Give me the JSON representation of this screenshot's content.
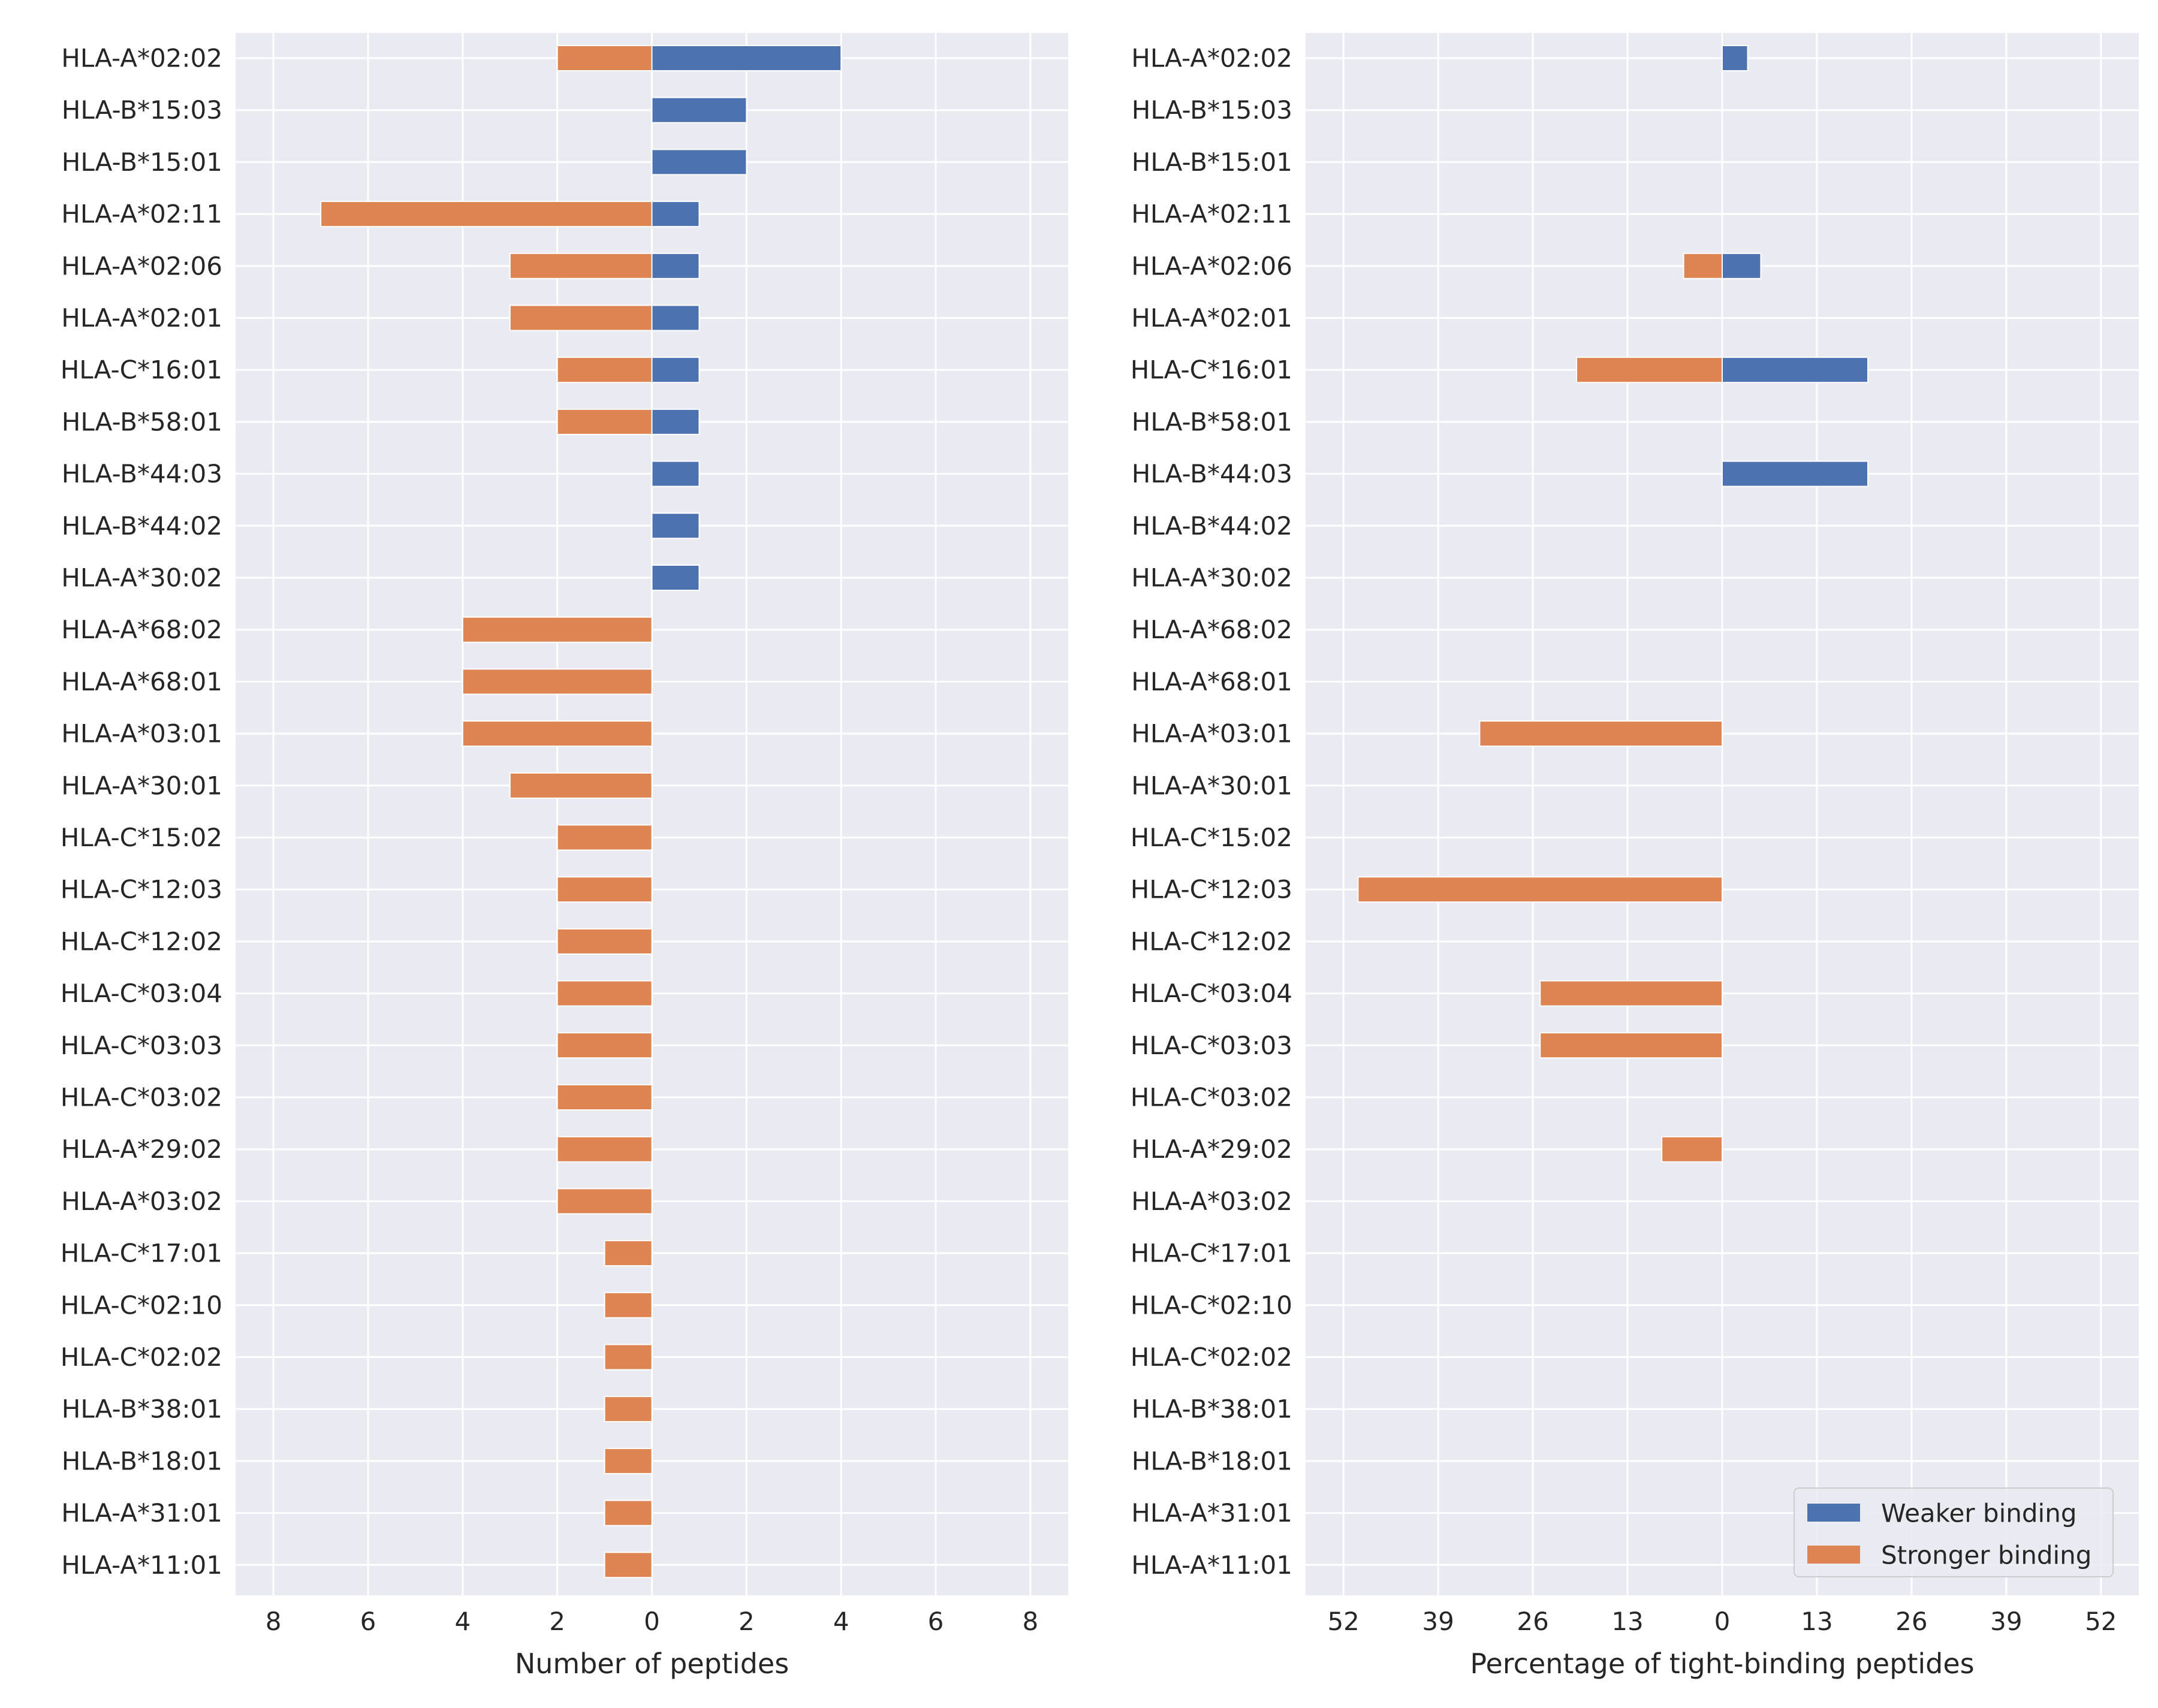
{
  "colors": {
    "weaker": "#4c72b0",
    "stronger": "#dd8452",
    "panel_bg": "#eaeaf2",
    "grid": "#ffffff",
    "text": "#262626"
  },
  "legend": {
    "position": "lower-right",
    "items": [
      {
        "label": "Weaker binding",
        "color": "#4c72b0"
      },
      {
        "label": "Stronger binding",
        "color": "#dd8452"
      }
    ]
  },
  "chart_data": [
    {
      "type": "bar",
      "orientation": "horizontal-diverging",
      "xlabel": "Number of peptides",
      "xlim": [
        -8.8,
        8.8
      ],
      "xticks": [
        -8,
        -6,
        -4,
        -2,
        0,
        2,
        4,
        6,
        8
      ],
      "xtick_labels": [
        "8",
        "6",
        "4",
        "2",
        "0",
        "2",
        "4",
        "6",
        "8"
      ],
      "grid": true,
      "categories": [
        "HLA-A*02:02",
        "HLA-B*15:03",
        "HLA-B*15:01",
        "HLA-A*02:11",
        "HLA-A*02:06",
        "HLA-A*02:01",
        "HLA-C*16:01",
        "HLA-B*58:01",
        "HLA-B*44:03",
        "HLA-B*44:02",
        "HLA-A*30:02",
        "HLA-A*68:02",
        "HLA-A*68:01",
        "HLA-A*03:01",
        "HLA-A*30:01",
        "HLA-C*15:02",
        "HLA-C*12:03",
        "HLA-C*12:02",
        "HLA-C*03:04",
        "HLA-C*03:03",
        "HLA-C*03:02",
        "HLA-A*29:02",
        "HLA-A*03:02",
        "HLA-C*17:01",
        "HLA-C*02:10",
        "HLA-C*02:02",
        "HLA-B*38:01",
        "HLA-B*18:01",
        "HLA-A*31:01",
        "HLA-A*11:01"
      ],
      "series": [
        {
          "name": "Weaker binding",
          "direction": "right",
          "values": [
            4,
            2,
            2,
            1,
            1,
            1,
            1,
            1,
            1,
            1,
            1,
            0,
            0,
            0,
            0,
            0,
            0,
            0,
            0,
            0,
            0,
            0,
            0,
            0,
            0,
            0,
            0,
            0,
            0,
            0
          ]
        },
        {
          "name": "Stronger binding",
          "direction": "left",
          "values": [
            2,
            0,
            0,
            7,
            3,
            3,
            2,
            2,
            0,
            0,
            0,
            4,
            4,
            4,
            3,
            2,
            2,
            2,
            2,
            2,
            2,
            2,
            2,
            1,
            1,
            1,
            1,
            1,
            1,
            1
          ]
        }
      ]
    },
    {
      "type": "bar",
      "orientation": "horizontal-diverging",
      "xlabel": "Percentage of tight-binding peptides",
      "xlim": [
        -57.2,
        57.2
      ],
      "xticks": [
        -52,
        -39,
        -26,
        -13,
        0,
        13,
        26,
        39,
        52
      ],
      "xtick_labels": [
        "52",
        "39",
        "26",
        "13",
        "0",
        "13",
        "26",
        "39",
        "52"
      ],
      "grid": true,
      "categories": [
        "HLA-A*02:02",
        "HLA-B*15:03",
        "HLA-B*15:01",
        "HLA-A*02:11",
        "HLA-A*02:06",
        "HLA-A*02:01",
        "HLA-C*16:01",
        "HLA-B*58:01",
        "HLA-B*44:03",
        "HLA-B*44:02",
        "HLA-A*30:02",
        "HLA-A*68:02",
        "HLA-A*68:01",
        "HLA-A*03:01",
        "HLA-A*30:01",
        "HLA-C*15:02",
        "HLA-C*12:03",
        "HLA-C*12:02",
        "HLA-C*03:04",
        "HLA-C*03:03",
        "HLA-C*03:02",
        "HLA-A*29:02",
        "HLA-A*03:02",
        "HLA-C*17:01",
        "HLA-C*02:10",
        "HLA-C*02:02",
        "HLA-B*38:01",
        "HLA-B*18:01",
        "HLA-A*31:01",
        "HLA-A*11:01"
      ],
      "series": [
        {
          "name": "Weaker binding",
          "direction": "right",
          "values": [
            3.5,
            0,
            0,
            0,
            5.3,
            0,
            20,
            0,
            20,
            0,
            0,
            0,
            0,
            0,
            0,
            0,
            0,
            0,
            0,
            0,
            0,
            0,
            0,
            0,
            0,
            0,
            0,
            0,
            0,
            0
          ]
        },
        {
          "name": "Stronger binding",
          "direction": "left",
          "values": [
            0,
            0,
            0,
            0,
            5.3,
            0,
            20,
            0,
            0,
            0,
            0,
            0,
            0,
            33.3,
            0,
            0,
            50,
            0,
            25,
            25,
            0,
            8.3,
            0,
            0,
            0,
            0,
            0,
            0,
            0,
            0
          ]
        }
      ]
    }
  ]
}
